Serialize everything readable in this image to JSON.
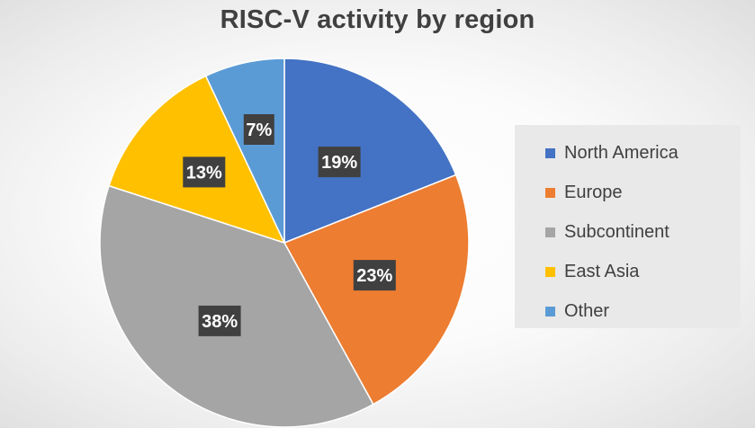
{
  "chart_data": {
    "type": "pie",
    "title": "RISC-V activity by region",
    "categories": [
      "North America",
      "Europe",
      "Subcontinent",
      "East Asia",
      "Other"
    ],
    "values": [
      19,
      23,
      38,
      13,
      7
    ],
    "labels": [
      "19%",
      "23%",
      "38%",
      "13%",
      "7%"
    ],
    "colors": [
      "#4472C4",
      "#ED7D31",
      "#A5A5A5",
      "#FFC000",
      "#5B9BD5"
    ],
    "legend_position": "right",
    "start_angle": "top, clockwise"
  },
  "legend": {
    "items": [
      {
        "label": "North America",
        "color": "#4472C4"
      },
      {
        "label": "Europe",
        "color": "#ED7D31"
      },
      {
        "label": "Subcontinent",
        "color": "#A5A5A5"
      },
      {
        "label": "East Asia",
        "color": "#FFC000"
      },
      {
        "label": "Other",
        "color": "#5B9BD5"
      }
    ]
  }
}
